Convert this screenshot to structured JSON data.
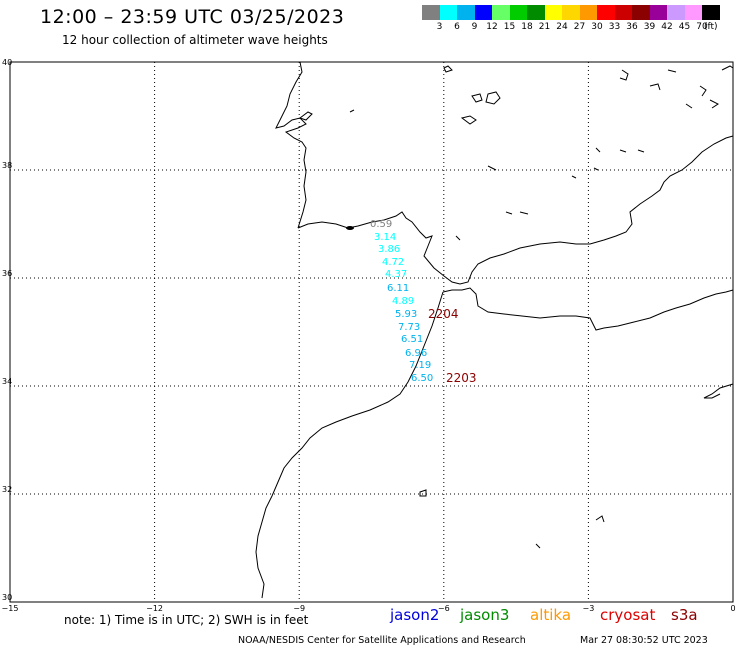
{
  "header": {
    "title": "12:00 – 23:59 UTC 03/25/2023",
    "subtitle": "12 hour collection of altimeter wave heights"
  },
  "colorbar": {
    "colors": [
      "#808080",
      "#00ffff",
      "#00b2ee",
      "#0000ff",
      "#66ff66",
      "#00cc00",
      "#008b00",
      "#ffff00",
      "#ffd700",
      "#ff9900",
      "#ff0000",
      "#cc0000",
      "#8b0000",
      "#990099",
      "#cc99ff",
      "#ff99ff",
      "#000000"
    ],
    "labels": [
      "3",
      "6",
      "9",
      "12",
      "15",
      "18",
      "21",
      "24",
      "27",
      "30",
      "33",
      "36",
      "39",
      "42",
      "45",
      "70",
      "(ft)"
    ]
  },
  "map": {
    "lon_range": [
      -15,
      0
    ],
    "lat_range": [
      30,
      40
    ],
    "lon_ticks": [
      "−15",
      "−12",
      "−9",
      "−6",
      "−3",
      "0"
    ],
    "lat_ticks": [
      "30",
      "32",
      "34",
      "36",
      "38",
      "40"
    ]
  },
  "wave_heights": {
    "values": [
      "0.59",
      "3.14",
      "3.86",
      "4.72",
      "4.37",
      "6.11",
      "4.89",
      "5.93",
      "7.73",
      "6.51",
      "6.96",
      "7.19",
      "6.50"
    ],
    "colors": [
      "#808080",
      "#00ffff",
      "#00ffff",
      "#00ffff",
      "#00ffff",
      "#00b2ee",
      "#00ffff",
      "#00b2ee",
      "#00b2ee",
      "#00b2ee",
      "#00b2ee",
      "#00b2ee",
      "#00b2ee"
    ],
    "pass_labels": [
      "2204",
      "2203"
    ],
    "pass_color": "#8b0000"
  },
  "footer": {
    "note": "note:  1) Time is in UTC;  2) SWH is in feet",
    "legend": [
      {
        "name": "jason2",
        "color": "#0000dd"
      },
      {
        "name": "jason3",
        "color": "#008b00"
      },
      {
        "name": "altika",
        "color": "#ff9900"
      },
      {
        "name": "cryosat",
        "color": "#dd0000"
      },
      {
        "name": "s3a",
        "color": "#8b0000"
      }
    ],
    "credit": "NOAA/NESDIS Center for Satellite Applications and Research",
    "timestamp": "Mar 27 08:30:52 UTC 2023"
  }
}
